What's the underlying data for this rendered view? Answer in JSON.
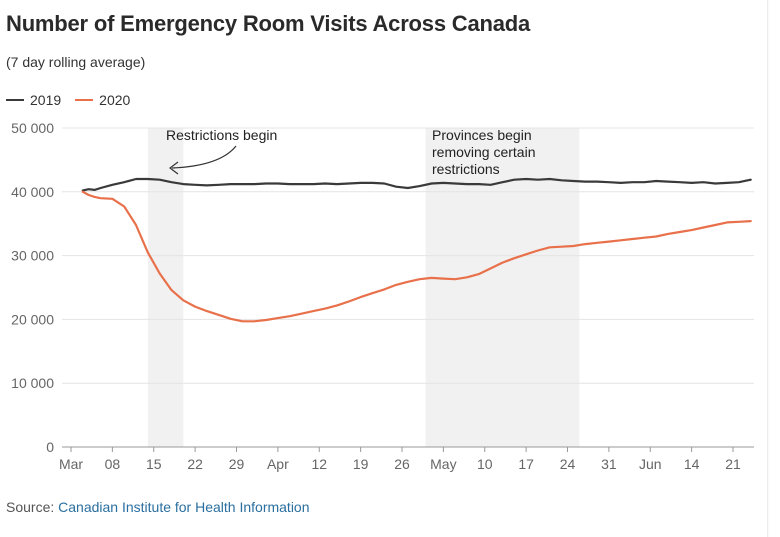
{
  "title": "Number of Emergency Room Visits Across Canada",
  "subtitle": "(7 day rolling average)",
  "legend": [
    {
      "label": "2019",
      "color": "#3a3a3a"
    },
    {
      "label": "2020",
      "color": "#e8704a"
    }
  ],
  "source": {
    "prefix": "Source:",
    "link_text": "Canadian Institute for Health Information"
  },
  "chart_data": {
    "type": "line",
    "title": "Number of Emergency Room Visits Across Canada",
    "subtitle": "(7 day rolling average)",
    "ylim": [
      0,
      50000
    ],
    "y_ticks": [
      0,
      10000,
      20000,
      30000,
      40000,
      50000
    ],
    "y_tick_labels": [
      "0",
      "10 000",
      "20 000",
      "30 000",
      "40 000",
      "50 000"
    ],
    "x_start": "2020-03-01",
    "x_end": "2020-06-24",
    "x_ticks": [
      {
        "date": "2020-03-01",
        "label": "Mar"
      },
      {
        "date": "2020-03-08",
        "label": "08"
      },
      {
        "date": "2020-03-15",
        "label": "15"
      },
      {
        "date": "2020-03-22",
        "label": "22"
      },
      {
        "date": "2020-03-29",
        "label": "29"
      },
      {
        "date": "2020-04-05",
        "label": "Apr"
      },
      {
        "date": "2020-04-12",
        "label": "12"
      },
      {
        "date": "2020-04-19",
        "label": "19"
      },
      {
        "date": "2020-04-26",
        "label": "26"
      },
      {
        "date": "2020-05-03",
        "label": "May"
      },
      {
        "date": "2020-05-10",
        "label": "10"
      },
      {
        "date": "2020-05-17",
        "label": "17"
      },
      {
        "date": "2020-05-24",
        "label": "24"
      },
      {
        "date": "2020-05-31",
        "label": "31"
      },
      {
        "date": "2020-06-07",
        "label": "Jun"
      },
      {
        "date": "2020-06-14",
        "label": "14"
      },
      {
        "date": "2020-06-21",
        "label": "21"
      }
    ],
    "grid": true,
    "legend_position": "top-left",
    "shaded_periods": [
      {
        "start": "2020-03-14",
        "end": "2020-03-20"
      },
      {
        "start": "2020-04-30",
        "end": "2020-05-26"
      }
    ],
    "annotations": [
      {
        "lines": [
          "Restrictions begin"
        ],
        "date": "2020-03-18"
      },
      {
        "lines": [
          "Provinces begin",
          "removing certain",
          "restrictions"
        ],
        "date": "2020-05-01"
      }
    ],
    "series": [
      {
        "name": "2019",
        "color": "#3a3a3a",
        "x": [
          "2020-03-03",
          "2020-03-04",
          "2020-03-05",
          "2020-03-06",
          "2020-03-08",
          "2020-03-10",
          "2020-03-12",
          "2020-03-14",
          "2020-03-16",
          "2020-03-18",
          "2020-03-20",
          "2020-03-22",
          "2020-03-24",
          "2020-03-26",
          "2020-03-28",
          "2020-03-30",
          "2020-04-01",
          "2020-04-03",
          "2020-04-05",
          "2020-04-07",
          "2020-04-09",
          "2020-04-11",
          "2020-04-13",
          "2020-04-15",
          "2020-04-17",
          "2020-04-19",
          "2020-04-21",
          "2020-04-23",
          "2020-04-25",
          "2020-04-27",
          "2020-04-29",
          "2020-05-01",
          "2020-05-03",
          "2020-05-05",
          "2020-05-07",
          "2020-05-09",
          "2020-05-11",
          "2020-05-13",
          "2020-05-15",
          "2020-05-17",
          "2020-05-19",
          "2020-05-21",
          "2020-05-23",
          "2020-05-25",
          "2020-05-27",
          "2020-05-29",
          "2020-05-31",
          "2020-06-02",
          "2020-06-04",
          "2020-06-06",
          "2020-06-08",
          "2020-06-10",
          "2020-06-12",
          "2020-06-14",
          "2020-06-16",
          "2020-06-18",
          "2020-06-20",
          "2020-06-22",
          "2020-06-24"
        ],
        "values": [
          40200,
          40400,
          40300,
          40600,
          41100,
          41500,
          42000,
          42000,
          41900,
          41500,
          41200,
          41100,
          41000,
          41100,
          41200,
          41200,
          41200,
          41300,
          41300,
          41200,
          41200,
          41200,
          41300,
          41200,
          41300,
          41400,
          41400,
          41300,
          40800,
          40600,
          40900,
          41300,
          41400,
          41300,
          41200,
          41200,
          41100,
          41500,
          41900,
          42000,
          41900,
          42000,
          41800,
          41700,
          41600,
          41600,
          41500,
          41400,
          41500,
          41500,
          41700,
          41600,
          41500,
          41400,
          41500,
          41300,
          41400,
          41500,
          41900
        ]
      },
      {
        "name": "2020",
        "color": "#e8704a",
        "x": [
          "2020-03-03",
          "2020-03-04",
          "2020-03-05",
          "2020-03-06",
          "2020-03-08",
          "2020-03-10",
          "2020-03-12",
          "2020-03-14",
          "2020-03-16",
          "2020-03-18",
          "2020-03-20",
          "2020-03-22",
          "2020-03-24",
          "2020-03-26",
          "2020-03-28",
          "2020-03-30",
          "2020-04-01",
          "2020-04-03",
          "2020-04-05",
          "2020-04-07",
          "2020-04-09",
          "2020-04-11",
          "2020-04-13",
          "2020-04-15",
          "2020-04-17",
          "2020-04-19",
          "2020-04-21",
          "2020-04-23",
          "2020-04-25",
          "2020-04-27",
          "2020-04-29",
          "2020-05-01",
          "2020-05-03",
          "2020-05-05",
          "2020-05-07",
          "2020-05-09",
          "2020-05-11",
          "2020-05-13",
          "2020-05-15",
          "2020-05-17",
          "2020-05-19",
          "2020-05-21",
          "2020-05-23",
          "2020-05-25",
          "2020-05-27",
          "2020-05-29",
          "2020-05-31",
          "2020-06-02",
          "2020-06-04",
          "2020-06-06",
          "2020-06-08",
          "2020-06-10",
          "2020-06-12",
          "2020-06-14",
          "2020-06-16",
          "2020-06-18",
          "2020-06-20",
          "2020-06-22",
          "2020-06-24"
        ],
        "values": [
          40000,
          39500,
          39200,
          39000,
          38900,
          37700,
          34800,
          30500,
          27200,
          24600,
          23000,
          22000,
          21300,
          20700,
          20100,
          19700,
          19700,
          19900,
          20200,
          20500,
          20900,
          21300,
          21700,
          22200,
          22800,
          23500,
          24100,
          24700,
          25400,
          25900,
          26300,
          26500,
          26400,
          26300,
          26600,
          27100,
          28000,
          28900,
          29600,
          30200,
          30800,
          31300,
          31400,
          31500,
          31800,
          32000,
          32200,
          32400,
          32600,
          32800,
          33000,
          33400,
          33700,
          34000,
          34400,
          34800,
          35200,
          35300,
          35400
        ]
      }
    ]
  }
}
